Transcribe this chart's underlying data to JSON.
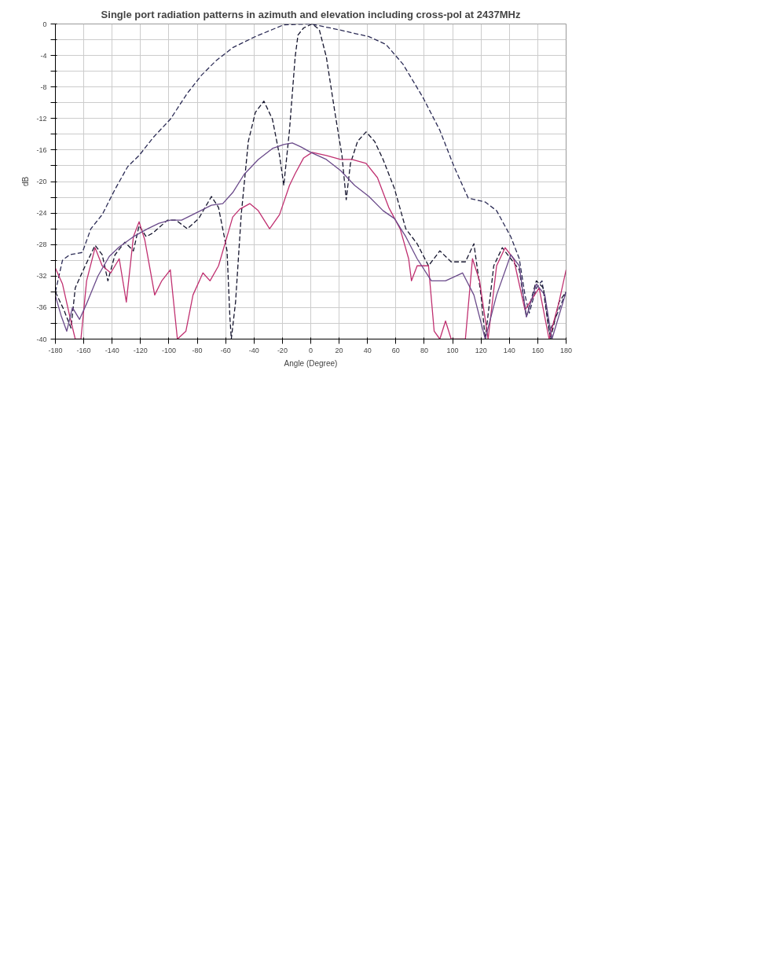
{
  "chart_data": {
    "type": "line",
    "title": "Single port radiation patterns in azimuth and elevation including cross-pol at 2437MHz",
    "xlabel": "Angle (Degree)",
    "ylabel": "dB",
    "xlim": [
      -180,
      180
    ],
    "ylim": [
      -40,
      0
    ],
    "xticks": [
      -180,
      -160,
      -140,
      -120,
      -100,
      -80,
      -60,
      -40,
      -20,
      0,
      20,
      40,
      60,
      80,
      100,
      120,
      140,
      160,
      180
    ],
    "yticks": [
      -40,
      {
        "value": -38,
        "label": null
      },
      -36,
      {
        "value": -34,
        "label": null
      },
      -32,
      {
        "value": -30,
        "label": null
      },
      -28,
      {
        "value": -26,
        "label": null
      },
      -24,
      {
        "value": -22,
        "label": null
      },
      -20,
      {
        "value": -18,
        "label": null
      },
      -16,
      {
        "value": -14,
        "label": null
      },
      -12,
      {
        "value": -10,
        "label": null
      },
      -8,
      {
        "value": -6,
        "label": null
      },
      -4,
      {
        "value": -2,
        "label": null
      },
      0
    ],
    "grid": true,
    "series": [
      {
        "color": "#2b2b55",
        "line_style": "dashed",
        "x": [
          -180,
          -175,
          -170,
          -161,
          -155,
          -147,
          -138,
          -129,
          -121,
          -111,
          -99,
          -87,
          -77,
          -67,
          -55,
          -39,
          -27,
          -19,
          0,
          19,
          31,
          41,
          53,
          65,
          79,
          91,
          101,
          111,
          123,
          131,
          141,
          147,
          151,
          154,
          159,
          163,
          168,
          171,
          180
        ],
        "values": [
          -34,
          -30,
          -29.3,
          -29,
          -26,
          -24.2,
          -21,
          -18.1,
          -16.7,
          -14.4,
          -12.1,
          -8.8,
          -6.5,
          -4.7,
          -3,
          -1.6,
          -0.7,
          -0.1,
          0,
          -0.7,
          -1.2,
          -1.6,
          -2.6,
          -5.1,
          -9.3,
          -13.5,
          -18.1,
          -22.1,
          -22.6,
          -23.7,
          -27,
          -29.8,
          -34.4,
          -36.7,
          -33.5,
          -32.6,
          -39,
          -38,
          -34
        ]
      },
      {
        "color": "#15152e",
        "line_style": "dashed",
        "x": [
          -180,
          -174,
          -169,
          -166,
          -159,
          -152,
          -147,
          -143,
          -138,
          -131,
          -125,
          -121,
          -116,
          -111,
          -101,
          -95,
          -87,
          -79,
          -70,
          -65,
          -59,
          -57,
          -56,
          -53,
          -49,
          -44,
          -39,
          -33,
          -27,
          -22,
          -19,
          -15,
          -11,
          -9,
          -5,
          1,
          6,
          11,
          17,
          22,
          25,
          28,
          33,
          39,
          45,
          51,
          59,
          67,
          75,
          83,
          91,
          99,
          109,
          115,
          120,
          123,
          129,
          135,
          141,
          147,
          152,
          159,
          164,
          169,
          175,
          180
        ],
        "values": [
          -34,
          -36.3,
          -38.6,
          -33.5,
          -30.7,
          -28.1,
          -29.3,
          -32.6,
          -29.3,
          -27.7,
          -28.8,
          -25.6,
          -27,
          -26.5,
          -24.9,
          -24.9,
          -26,
          -24.7,
          -21.9,
          -23.3,
          -28.8,
          -37.2,
          -40,
          -35.3,
          -24.2,
          -14.9,
          -11.2,
          -9.8,
          -12.1,
          -16.7,
          -20.5,
          -13.5,
          -4.2,
          -1.4,
          -0.5,
          0,
          -0.7,
          -4.2,
          -11.2,
          -16.7,
          -22.3,
          -17.7,
          -14.9,
          -13.7,
          -14.9,
          -17.2,
          -20.9,
          -26,
          -27.9,
          -30.7,
          -28.8,
          -30.2,
          -30.2,
          -27.9,
          -34.4,
          -40,
          -30.7,
          -28.4,
          -29.8,
          -31.2,
          -37.2,
          -32.6,
          -33.5,
          -40,
          -35.3,
          -34
        ]
      },
      {
        "color": "#c03070",
        "x": [
          -180,
          -175,
          -170,
          -166,
          -162,
          -158,
          -152,
          -147,
          -141,
          -135,
          -130,
          -125,
          -121,
          -117,
          -110,
          -105,
          -99,
          -94,
          -88,
          -83,
          -76,
          -71,
          -65,
          -59,
          -55,
          -50,
          -43,
          -37,
          -29,
          -22,
          -15,
          -11,
          -5,
          1,
          11,
          21,
          29,
          39,
          47,
          55,
          63,
          69,
          71,
          75,
          83,
          87,
          91,
          95,
          99,
          109,
          114,
          119,
          125,
          131,
          137,
          143,
          151,
          161,
          168,
          175,
          180
        ],
        "values": [
          -31,
          -33,
          -37,
          -40,
          -40,
          -32.6,
          -28.4,
          -30.7,
          -31.6,
          -29.8,
          -35.3,
          -27,
          -25.1,
          -27.4,
          -34.4,
          -32.6,
          -31.2,
          -40,
          -39,
          -34.4,
          -31.6,
          -32.6,
          -30.7,
          -27,
          -24.5,
          -23.5,
          -22.8,
          -23.7,
          -26,
          -24.2,
          -20.5,
          -19,
          -17,
          -16.3,
          -16.7,
          -17.2,
          -17.2,
          -17.7,
          -19.5,
          -23.3,
          -26,
          -29.8,
          -32.6,
          -30.7,
          -30.7,
          -39,
          -40,
          -37.7,
          -40,
          -40,
          -29.8,
          -32.6,
          -40,
          -30.7,
          -28.4,
          -29.8,
          -36.3,
          -33.5,
          -40,
          -35.3,
          -31.2
        ]
      },
      {
        "color": "#6a4a8a",
        "x": [
          -180,
          -176,
          -172,
          -168,
          -163,
          -158,
          -150,
          -142,
          -135,
          -125,
          -115,
          -107,
          -99,
          -91,
          -81,
          -70,
          -62,
          -55,
          -47,
          -37,
          -27,
          -19,
          -13,
          -7,
          0,
          11,
          21,
          31,
          41,
          51,
          59,
          67,
          75,
          85,
          95,
          107,
          115,
          123,
          131,
          141,
          147,
          152,
          159,
          165,
          170,
          180
        ],
        "values": [
          -34.5,
          -37,
          -39,
          -36,
          -37.5,
          -35.5,
          -32,
          -29.5,
          -28.3,
          -27,
          -26,
          -25.3,
          -24.9,
          -24.9,
          -24,
          -23,
          -22.8,
          -21.4,
          -19.1,
          -17.2,
          -15.8,
          -15.3,
          -15.1,
          -15.6,
          -16.3,
          -17.2,
          -18.6,
          -20.5,
          -21.9,
          -23.7,
          -24.7,
          -27,
          -29.8,
          -32.6,
          -32.6,
          -31.6,
          -34.4,
          -40,
          -34.4,
          -29.3,
          -30.7,
          -37.2,
          -33,
          -34.4,
          -40,
          -34
        ]
      }
    ]
  }
}
